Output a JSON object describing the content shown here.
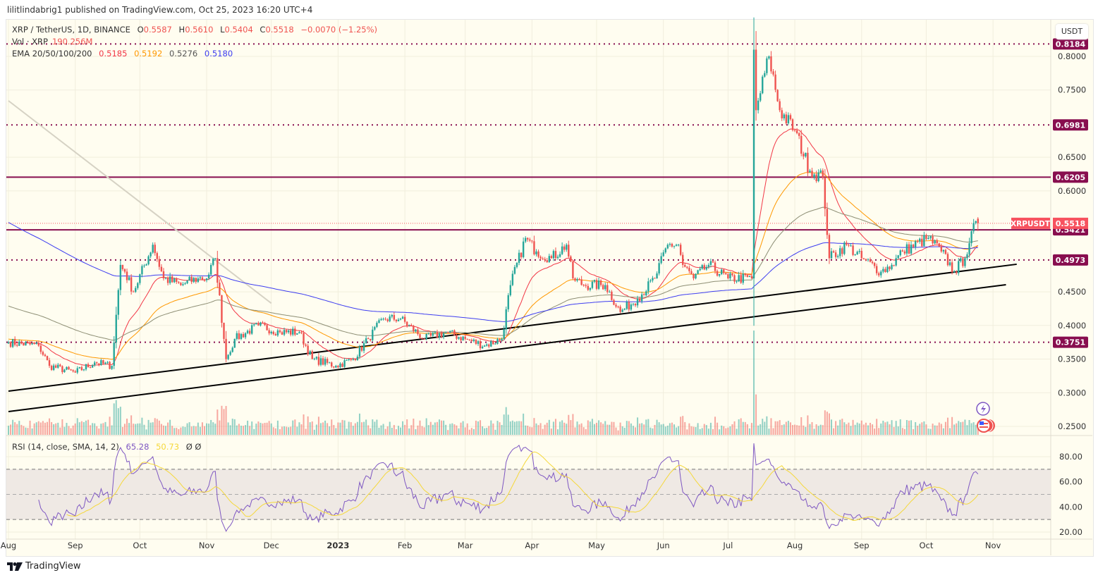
{
  "publisher_line": "lilitlindabrig1 published on TradingView.com, Oct 25, 2023 16:20 UTC+4",
  "footer_brand": "TradingView",
  "legend": {
    "symbol": "XRP / TetherUS, 1D, BINANCE",
    "open_label": "O",
    "open": "0.5587",
    "high_label": "H",
    "high": "0.5610",
    "low_label": "L",
    "low": "0.5404",
    "close_label": "C",
    "close": "0.5518",
    "change": "−0.0070 (−1.25%)",
    "volume_label": "Vol · XRP",
    "volume": "190.256M",
    "ema_label": "EMA 20/50/100/200",
    "ema20": "0.5185",
    "ema50": "0.5192",
    "ema100": "0.5276",
    "ema200": "0.5180",
    "rsi_label": "RSI (14, close, SMA, 14, 2)",
    "rsi": "65.28",
    "rsi_sma": "50.73",
    "rsi_extra": "Ø Ø"
  },
  "currency_button": "USDT",
  "colors": {
    "up": "#26a69a",
    "down": "#ef5350",
    "ema20": "#f23645",
    "ema50": "#ff9800",
    "ema100": "#8d8e74",
    "ema200": "#3d3df0",
    "level": "#880e4f",
    "last_price": "#f7525f",
    "rsi": "#7e57c2",
    "rsi_sma": "#f5d83a",
    "background": "#fffdf0"
  },
  "chart_data": {
    "type": "candlestick",
    "symbol": "XRPUSDT",
    "last_price": 0.5518,
    "last_price_label": "XRPUSDT",
    "price_axis": {
      "range": [
        0.235,
        0.855
      ],
      "ticks": [
        "0.8000",
        "0.7500",
        "0.6500",
        "0.6000",
        "0.4500",
        "0.4000",
        "0.3500",
        "0.3000",
        "0.2500"
      ]
    },
    "time_axis": {
      "ticks": [
        {
          "date": "2022-08-01",
          "label": "Aug"
        },
        {
          "date": "2022-09-01",
          "label": "Sep"
        },
        {
          "date": "2022-10-01",
          "label": "Oct"
        },
        {
          "date": "2022-11-01",
          "label": "Nov"
        },
        {
          "date": "2022-12-01",
          "label": "Dec"
        },
        {
          "date": "2023-01-01",
          "label": "2023"
        },
        {
          "date": "2023-02-01",
          "label": "Feb"
        },
        {
          "date": "2023-03-01",
          "label": "Mar"
        },
        {
          "date": "2023-04-01",
          "label": "Apr"
        },
        {
          "date": "2023-05-01",
          "label": "May"
        },
        {
          "date": "2023-06-01",
          "label": "Jun"
        },
        {
          "date": "2023-07-01",
          "label": "Jul"
        },
        {
          "date": "2023-08-01",
          "label": "Aug"
        },
        {
          "date": "2023-09-01",
          "label": "Sep"
        },
        {
          "date": "2023-10-01",
          "label": "Oct"
        },
        {
          "date": "2023-11-01",
          "label": "Nov"
        }
      ]
    },
    "close_path": [
      [
        "2022-08-01",
        0.375
      ],
      [
        "2022-08-15",
        0.37
      ],
      [
        "2022-08-20",
        0.34
      ],
      [
        "2022-09-01",
        0.33
      ],
      [
        "2022-09-10",
        0.345
      ],
      [
        "2022-09-18",
        0.34
      ],
      [
        "2022-09-22",
        0.49
      ],
      [
        "2022-09-24",
        0.48
      ],
      [
        "2022-09-28",
        0.45
      ],
      [
        "2022-10-07",
        0.52
      ],
      [
        "2022-10-12",
        0.47
      ],
      [
        "2022-10-20",
        0.46
      ],
      [
        "2022-10-28",
        0.47
      ],
      [
        "2022-11-01",
        0.47
      ],
      [
        "2022-11-05",
        0.5
      ],
      [
        "2022-11-09",
        0.38
      ],
      [
        "2022-11-10",
        0.35
      ],
      [
        "2022-11-14",
        0.38
      ],
      [
        "2022-11-25",
        0.4
      ],
      [
        "2022-12-05",
        0.39
      ],
      [
        "2022-12-14",
        0.39
      ],
      [
        "2022-12-20",
        0.35
      ],
      [
        "2022-12-31",
        0.34
      ],
      [
        "2023-01-08",
        0.35
      ],
      [
        "2023-01-15",
        0.38
      ],
      [
        "2023-01-22",
        0.41
      ],
      [
        "2023-01-30",
        0.41
      ],
      [
        "2023-02-10",
        0.38
      ],
      [
        "2023-02-20",
        0.39
      ],
      [
        "2023-03-01",
        0.38
      ],
      [
        "2023-03-10",
        0.37
      ],
      [
        "2023-03-18",
        0.38
      ],
      [
        "2023-03-22",
        0.46
      ],
      [
        "2023-03-29",
        0.53
      ],
      [
        "2023-04-03",
        0.51
      ],
      [
        "2023-04-10",
        0.5
      ],
      [
        "2023-04-17",
        0.52
      ],
      [
        "2023-04-20",
        0.47
      ],
      [
        "2023-04-25",
        0.46
      ],
      [
        "2023-05-05",
        0.46
      ],
      [
        "2023-05-12",
        0.42
      ],
      [
        "2023-05-20",
        0.44
      ],
      [
        "2023-05-28",
        0.47
      ],
      [
        "2023-06-03",
        0.52
      ],
      [
        "2023-06-08",
        0.52
      ],
      [
        "2023-06-10",
        0.49
      ],
      [
        "2023-06-15",
        0.47
      ],
      [
        "2023-06-22",
        0.49
      ],
      [
        "2023-07-01",
        0.47
      ],
      [
        "2023-07-12",
        0.47
      ],
      [
        "2023-07-13",
        0.81
      ],
      [
        "2023-07-14",
        0.72
      ],
      [
        "2023-07-20",
        0.8
      ],
      [
        "2023-07-25",
        0.72
      ],
      [
        "2023-08-01",
        0.69
      ],
      [
        "2023-08-08",
        0.63
      ],
      [
        "2023-08-14",
        0.62
      ],
      [
        "2023-08-17",
        0.5
      ],
      [
        "2023-08-25",
        0.52
      ],
      [
        "2023-09-01",
        0.5
      ],
      [
        "2023-09-10",
        0.48
      ],
      [
        "2023-09-15",
        0.49
      ],
      [
        "2023-09-20",
        0.51
      ],
      [
        "2023-10-02",
        0.53
      ],
      [
        "2023-10-08",
        0.51
      ],
      [
        "2023-10-14",
        0.48
      ],
      [
        "2023-10-19",
        0.5
      ],
      [
        "2023-10-22",
        0.54
      ],
      [
        "2023-10-25",
        0.5518
      ]
    ],
    "horizontal_levels": [
      {
        "price": 0.8184,
        "label": "0.8184",
        "style": "dotted"
      },
      {
        "price": 0.6981,
        "label": "0.6981",
        "style": "dotted"
      },
      {
        "price": 0.6205,
        "label": "0.6205",
        "style": "solid"
      },
      {
        "price": 0.5421,
        "label": "0.5421",
        "style": "solid"
      },
      {
        "price": 0.4973,
        "label": "0.4973",
        "style": "dotted"
      },
      {
        "price": 0.3751,
        "label": "0.3751",
        "style": "dotted"
      }
    ],
    "trendlines": [
      {
        "from": [
          "2022-08-01",
          0.3024
        ],
        "to": [
          "2023-11-12",
          0.491
        ],
        "color": "#000000"
      },
      {
        "from": [
          "2022-08-01",
          0.272
        ],
        "to": [
          "2023-11-07",
          0.4606
        ],
        "color": "#000000"
      },
      {
        "from": [
          "2022-08-01",
          0.734
        ],
        "to": [
          "2022-12-01",
          0.433
        ],
        "color": "#d6d2c4"
      }
    ],
    "rsi_axis": {
      "ticks": [
        "80.00",
        "60.00",
        "40.00",
        "20.00"
      ],
      "bands": [
        70,
        50,
        30
      ]
    }
  }
}
